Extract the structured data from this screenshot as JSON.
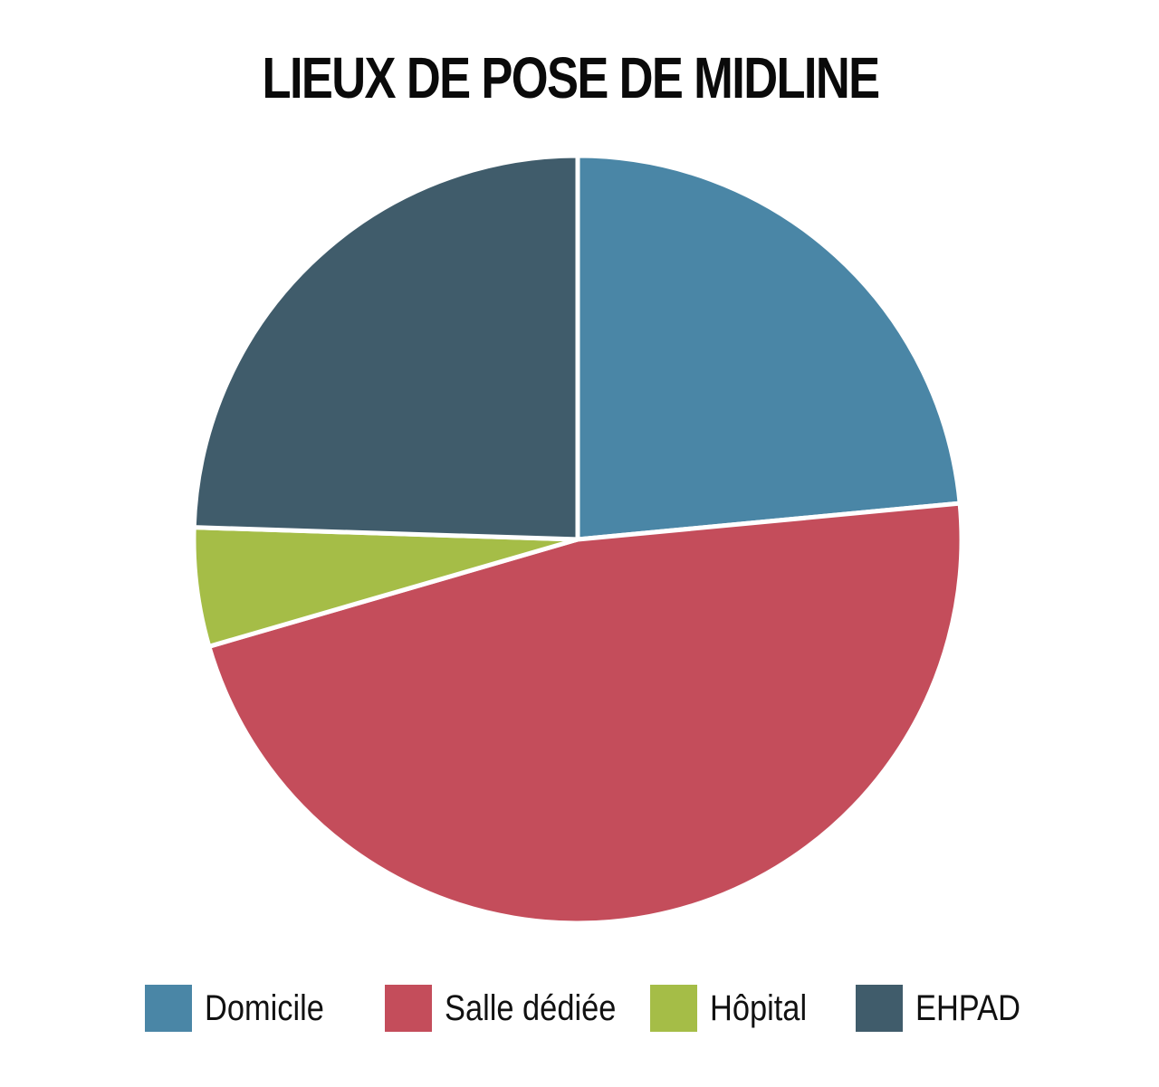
{
  "chart_data": {
    "type": "pie",
    "title": "LIEUX DE POSE DE MIDLINE",
    "legend_position": "bottom",
    "start_angle": "top",
    "direction": "clockwise",
    "slices": [
      {
        "name": "Domicile",
        "value": 23.5,
        "color": "#4a86a6"
      },
      {
        "name": "Salle dédiée",
        "value": 47.0,
        "color": "#c44d5b"
      },
      {
        "name": "Hôpital",
        "value": 5.0,
        "color": "#a5bd47"
      },
      {
        "name": "EHPAD",
        "value": 24.5,
        "color": "#405c6b"
      }
    ]
  }
}
